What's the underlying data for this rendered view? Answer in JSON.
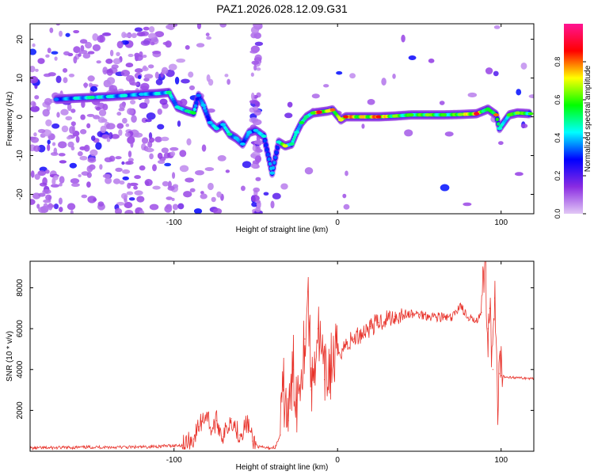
{
  "chart_data": [
    {
      "type": "heatmap",
      "title": "PAZ1.2026.028.12.09.G31",
      "xlabel": "Height of straight line (km)",
      "ylabel": "Frequency (Hz)",
      "xlim": [
        -188,
        120
      ],
      "ylim": [
        -25,
        24
      ],
      "xticks": [
        -100,
        0,
        100
      ],
      "yticks": [
        -20,
        -10,
        0,
        10,
        20
      ],
      "colorbar": {
        "label": "Normalized spectral amplitude",
        "range": [
          0,
          1
        ],
        "ticks": [
          0.0,
          0.2,
          0.4,
          0.6,
          0.8
        ],
        "colormap": [
          "#e2c8f5",
          "#8a2be2",
          "#0000ff",
          "#00ffff",
          "#00ff00",
          "#ffff00",
          "#ff0000",
          "#ff1493"
        ]
      },
      "ridge": [
        {
          "x": -172,
          "f": 4.5,
          "a": 0.35
        },
        {
          "x": -160,
          "f": 4.8,
          "a": 0.45
        },
        {
          "x": -150,
          "f": 5.0,
          "a": 0.5
        },
        {
          "x": -140,
          "f": 5.2,
          "a": 0.45
        },
        {
          "x": -130,
          "f": 5.5,
          "a": 0.45
        },
        {
          "x": -120,
          "f": 5.8,
          "a": 0.4
        },
        {
          "x": -110,
          "f": 6.0,
          "a": 0.45
        },
        {
          "x": -103,
          "f": 6.3,
          "a": 0.5
        },
        {
          "x": -98,
          "f": 2.5,
          "a": 0.45
        },
        {
          "x": -92,
          "f": 1.5,
          "a": 0.5
        },
        {
          "x": -88,
          "f": 1.0,
          "a": 0.55
        },
        {
          "x": -85,
          "f": 5.5,
          "a": 0.35
        },
        {
          "x": -82,
          "f": 3.0,
          "a": 0.4
        },
        {
          "x": -78,
          "f": -1.5,
          "a": 0.4
        },
        {
          "x": -74,
          "f": -3.0,
          "a": 0.45
        },
        {
          "x": -70,
          "f": -2.0,
          "a": 0.4
        },
        {
          "x": -66,
          "f": -4.5,
          "a": 0.5
        },
        {
          "x": -62,
          "f": -5.5,
          "a": 0.4
        },
        {
          "x": -58,
          "f": -7.0,
          "a": 0.4
        },
        {
          "x": -54,
          "f": -4.0,
          "a": 0.4
        },
        {
          "x": -50,
          "f": -3.5,
          "a": 0.4
        },
        {
          "x": -45,
          "f": -5.0,
          "a": 0.45
        },
        {
          "x": -40,
          "f": -14.5,
          "a": 0.4
        },
        {
          "x": -36,
          "f": -6.5,
          "a": 0.45
        },
        {
          "x": -32,
          "f": -7.5,
          "a": 0.7
        },
        {
          "x": -28,
          "f": -7.0,
          "a": 0.5
        },
        {
          "x": -25,
          "f": -4.0,
          "a": 0.45
        },
        {
          "x": -22,
          "f": -1.5,
          "a": 0.55
        },
        {
          "x": -19,
          "f": 0.0,
          "a": 0.5
        },
        {
          "x": -15,
          "f": 1.0,
          "a": 0.6
        },
        {
          "x": -11,
          "f": 1.2,
          "a": 0.9
        },
        {
          "x": -6,
          "f": 1.5,
          "a": 0.7
        },
        {
          "x": -3,
          "f": 1.8,
          "a": 0.8
        },
        {
          "x": 2,
          "f": -0.8,
          "a": 0.7
        },
        {
          "x": 5,
          "f": 0.0,
          "a": 0.85
        },
        {
          "x": 15,
          "f": 0.0,
          "a": 0.75
        },
        {
          "x": 25,
          "f": 0.0,
          "a": 0.85
        },
        {
          "x": 35,
          "f": 0.2,
          "a": 0.65
        },
        {
          "x": 45,
          "f": 0.5,
          "a": 0.6
        },
        {
          "x": 55,
          "f": 0.5,
          "a": 0.65
        },
        {
          "x": 65,
          "f": 0.5,
          "a": 0.6
        },
        {
          "x": 75,
          "f": 0.6,
          "a": 0.65
        },
        {
          "x": 85,
          "f": 0.8,
          "a": 0.9
        },
        {
          "x": 92,
          "f": 2.0,
          "a": 0.55
        },
        {
          "x": 97,
          "f": 0.5,
          "a": 0.8
        },
        {
          "x": 99,
          "f": -3.0,
          "a": 0.45
        },
        {
          "x": 105,
          "f": 0.5,
          "a": 0.6
        },
        {
          "x": 110,
          "f": 1.0,
          "a": 0.65
        },
        {
          "x": 118,
          "f": 0.8,
          "a": 0.6
        }
      ]
    },
    {
      "type": "line",
      "xlabel": "Height of straight line (km)",
      "ylabel": "SNR (10 * v/v)",
      "xlim": [
        -188,
        120
      ],
      "ylim": [
        0,
        9300
      ],
      "xticks": [
        -100,
        0,
        100
      ],
      "yticks": [
        2000,
        4000,
        6000,
        8000
      ],
      "color": "#e8322a",
      "x": [
        -188,
        -150,
        -120,
        -95,
        -88,
        -85,
        -80,
        -77,
        -74,
        -70,
        -65,
        -60,
        -55,
        -52,
        -48,
        -42,
        -38,
        -35,
        -33,
        -30,
        -27,
        -25,
        -20,
        -18,
        -16,
        -14,
        -12,
        -8,
        -4,
        0,
        5,
        10,
        15,
        20,
        25,
        30,
        35,
        40,
        45,
        50,
        55,
        60,
        65,
        70,
        75,
        80,
        85,
        88,
        90,
        92,
        93,
        95,
        96,
        98,
        99,
        100,
        102,
        110,
        120
      ],
      "y": [
        150,
        200,
        200,
        300,
        600,
        1200,
        1900,
        1000,
        1500,
        700,
        1600,
        800,
        1400,
        500,
        200,
        150,
        200,
        800,
        3000,
        1500,
        4000,
        2500,
        5500,
        7800,
        3000,
        4500,
        6000,
        3500,
        4200,
        4800,
        5200,
        5500,
        5800,
        6100,
        6300,
        6500,
        6600,
        6700,
        6700,
        6700,
        6650,
        6600,
        6550,
        6500,
        7200,
        6400,
        6500,
        6800,
        9300,
        6000,
        7000,
        4000,
        7500,
        1800,
        3800,
        3700,
        3650,
        3600,
        3550
      ]
    }
  ]
}
